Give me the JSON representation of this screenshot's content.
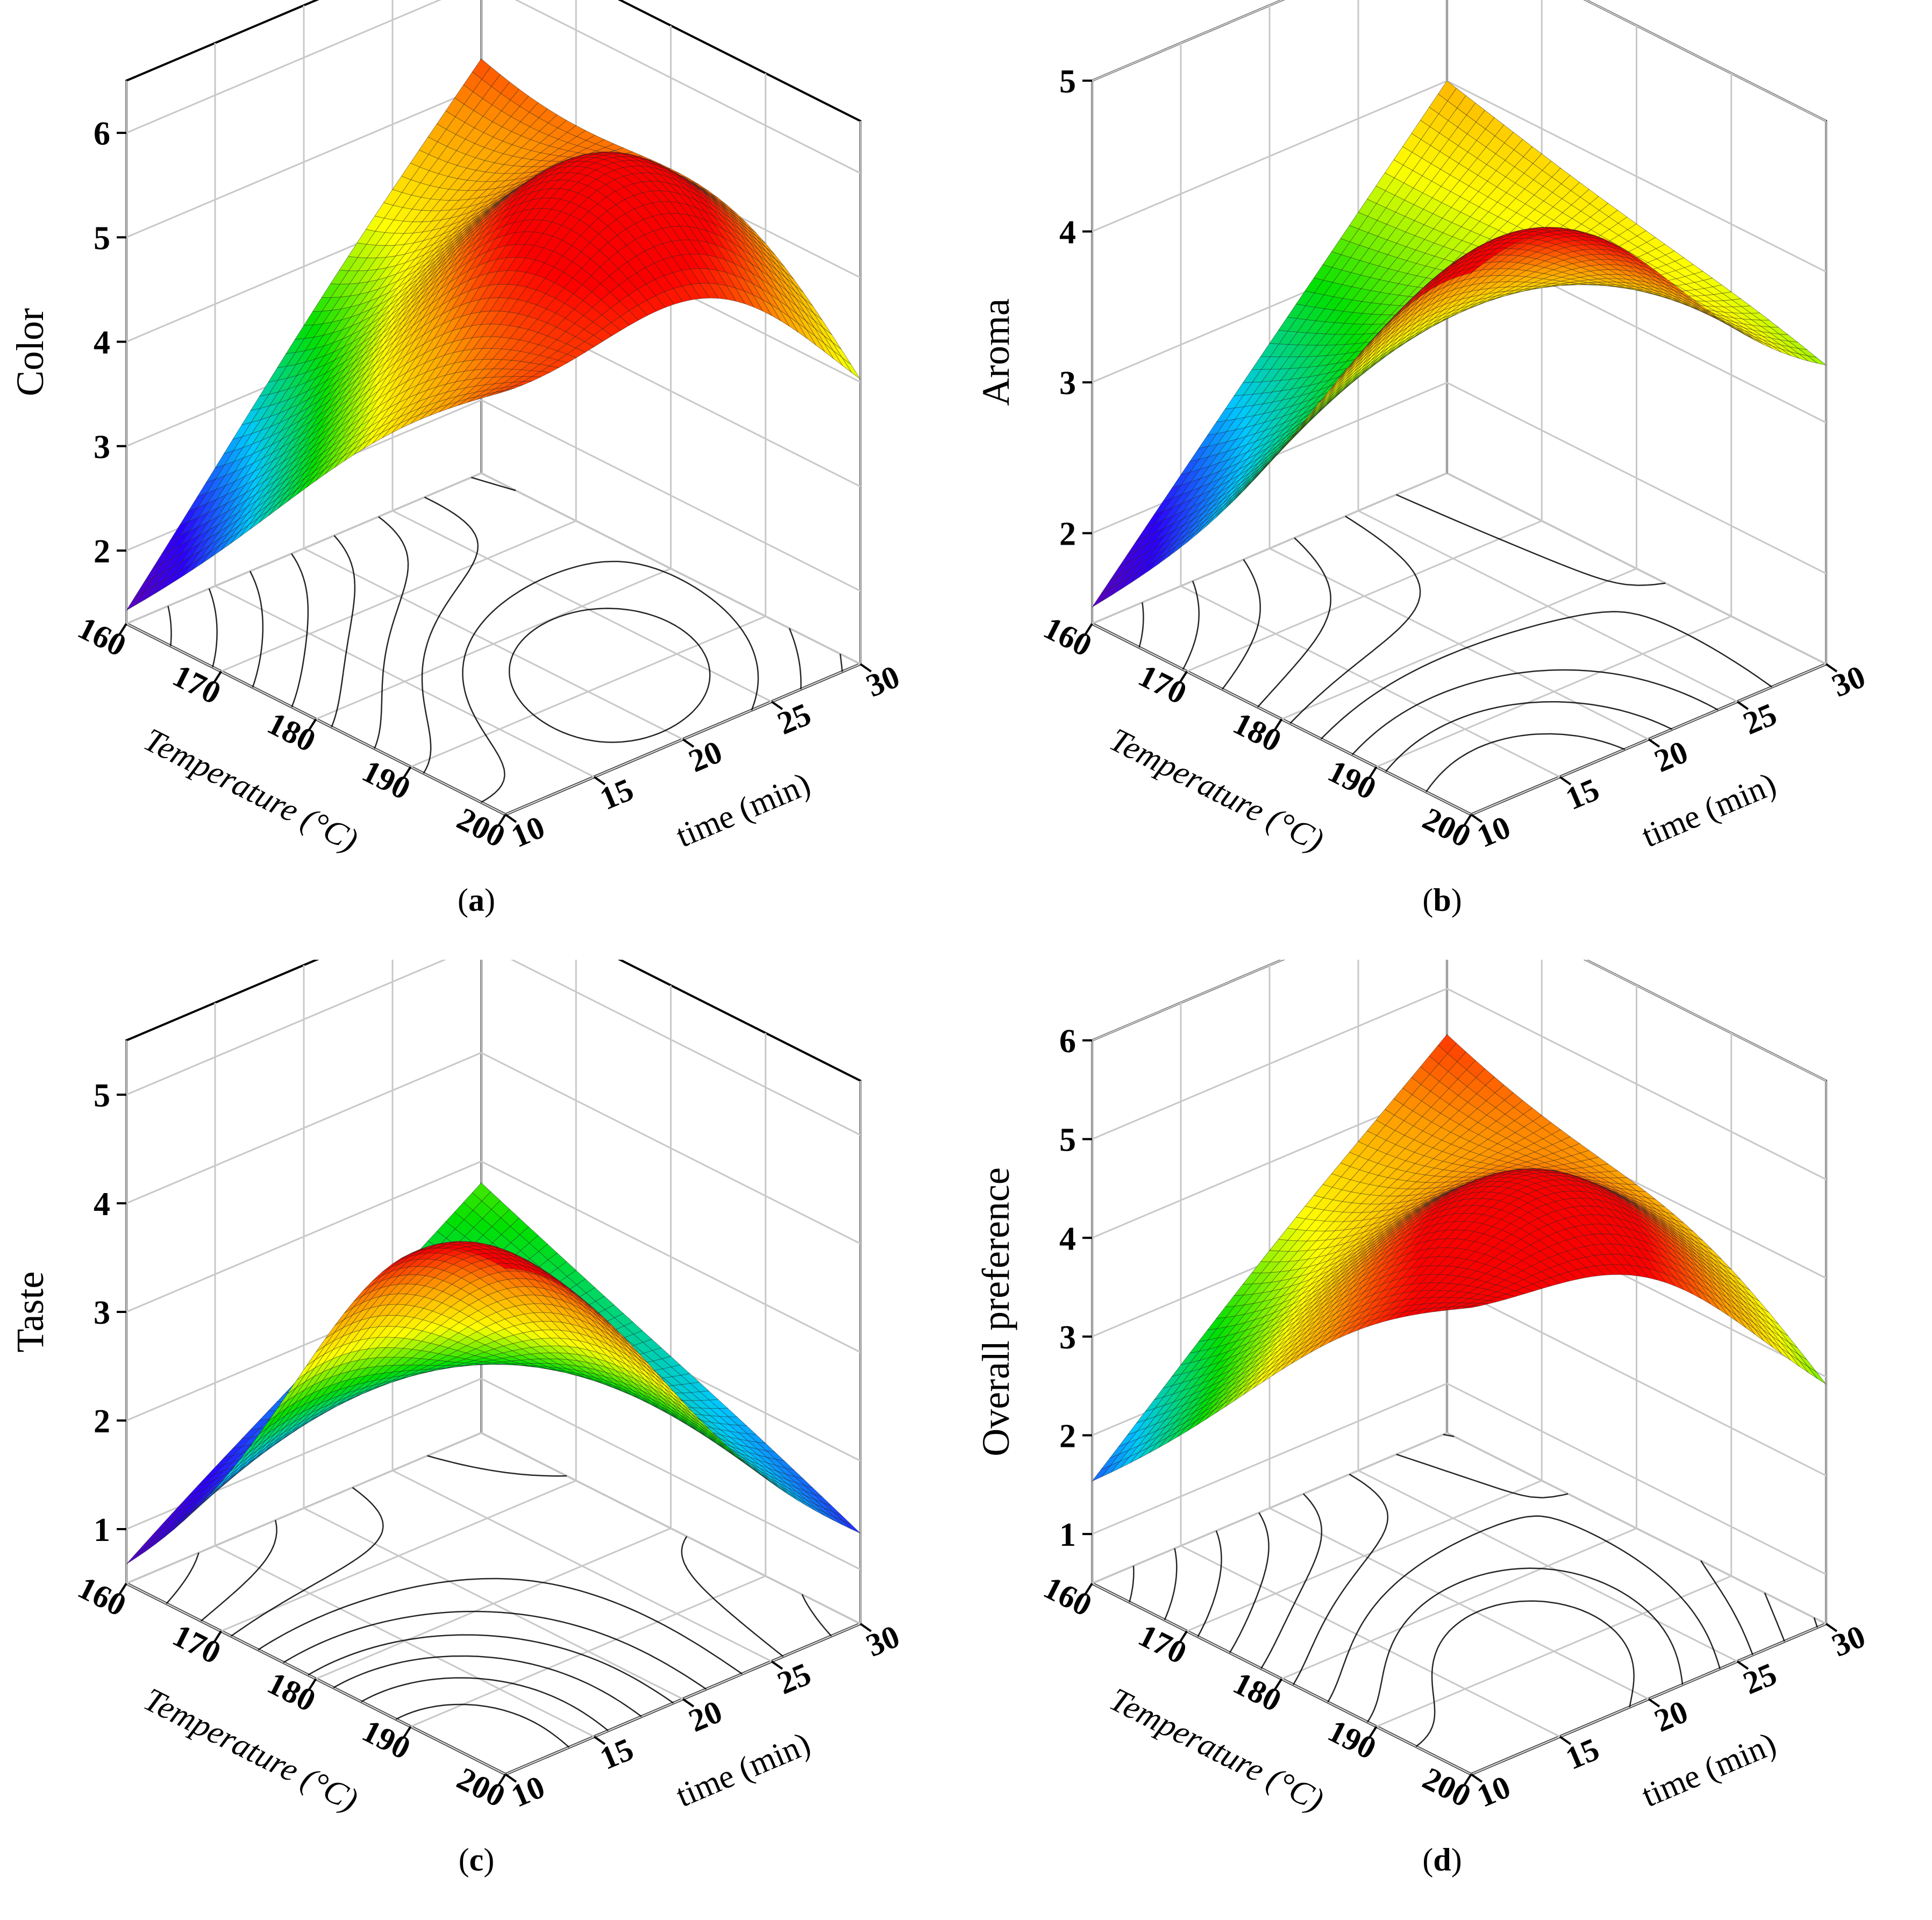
{
  "charts_meta": {
    "colormap": [
      "#6a00a8",
      "#2b00ff",
      "#00c8ff",
      "#00e000",
      "#ffff00",
      "#ff9900",
      "#ff0000",
      "#3a0000"
    ],
    "axis_color": "#000000",
    "grid_color": "#c8c8c8",
    "contour_color": "#000000"
  },
  "chart_data": [
    {
      "panel": "a",
      "caption": "a",
      "type": "surface3d",
      "xlabel": "Temperature (°C)",
      "ylabel": "time (min)",
      "zlabel": "Color",
      "x_ticks": [
        "160",
        "170",
        "180",
        "190",
        "200"
      ],
      "y_ticks": [
        "10",
        "15",
        "20",
        "25",
        "30"
      ],
      "z_ticks": [
        "2",
        "3",
        "4",
        "5",
        "6"
      ],
      "xlim": [
        160,
        200
      ],
      "ylim": [
        10,
        30
      ],
      "zlim": [
        1.3,
        6.5
      ],
      "surface_corners": {
        "t160_m10": 1.4,
        "t160_m30": 5.2,
        "t200_m10": 5.1,
        "t200_m30": 3.4
      },
      "peak": {
        "temperature": 188,
        "time": 22,
        "value": 6.1
      }
    },
    {
      "panel": "b",
      "caption": "b",
      "type": "surface3d",
      "xlabel": "Temperature (°C)",
      "ylabel": "time (min)",
      "zlabel": "Aroma",
      "x_ticks": [
        "160",
        "170",
        "180",
        "190",
        "200"
      ],
      "y_ticks": [
        "10",
        "15",
        "20",
        "25",
        "30"
      ],
      "z_ticks": [
        "2",
        "3",
        "4",
        "5"
      ],
      "xlim": [
        160,
        200
      ],
      "ylim": [
        10,
        30
      ],
      "zlim": [
        1.4,
        5.0
      ],
      "surface_corners": {
        "t160_m10": 1.5,
        "t160_m30": 4.0,
        "t200_m10": 4.2,
        "t200_m30": 3.3
      },
      "peak": {
        "temperature": 196,
        "time": 15,
        "value": 4.9
      }
    },
    {
      "panel": "c",
      "caption": "c",
      "type": "surface3d",
      "xlabel": "Temperature (°C)",
      "ylabel": "time (min)",
      "zlabel": "Taste",
      "x_ticks": [
        "160",
        "170",
        "180",
        "190",
        "200"
      ],
      "y_ticks": [
        "10",
        "15",
        "20",
        "25",
        "30"
      ],
      "z_ticks": [
        "1",
        "2",
        "3",
        "4",
        "5"
      ],
      "xlim": [
        160,
        200
      ],
      "ylim": [
        10,
        30
      ],
      "zlim": [
        0.5,
        5.5
      ],
      "surface_corners": {
        "t160_m10": 0.6,
        "t160_m30": 2.8,
        "t200_m10": 3.9,
        "t200_m30": 1.3
      },
      "peak": {
        "temperature": 190,
        "time": 12,
        "value": 4.8
      }
    },
    {
      "panel": "d",
      "caption": "d",
      "type": "surface3d",
      "xlabel": "Temperature (°C)",
      "ylabel": "time (min)",
      "zlabel": "Overall preference",
      "x_ticks": [
        "160",
        "170",
        "180",
        "190",
        "200"
      ],
      "y_ticks": [
        "10",
        "15",
        "20",
        "25",
        "30"
      ],
      "z_ticks": [
        "1",
        "2",
        "3",
        "4",
        "5",
        "6"
      ],
      "xlim": [
        160,
        200
      ],
      "ylim": [
        10,
        30
      ],
      "zlim": [
        0.5,
        6.0
      ],
      "surface_corners": {
        "t160_m10": 1.5,
        "t160_m30": 4.5,
        "t200_m10": 4.9,
        "t200_m30": 2.6
      },
      "peak": {
        "temperature": 188,
        "time": 20,
        "value": 5.2
      }
    }
  ]
}
